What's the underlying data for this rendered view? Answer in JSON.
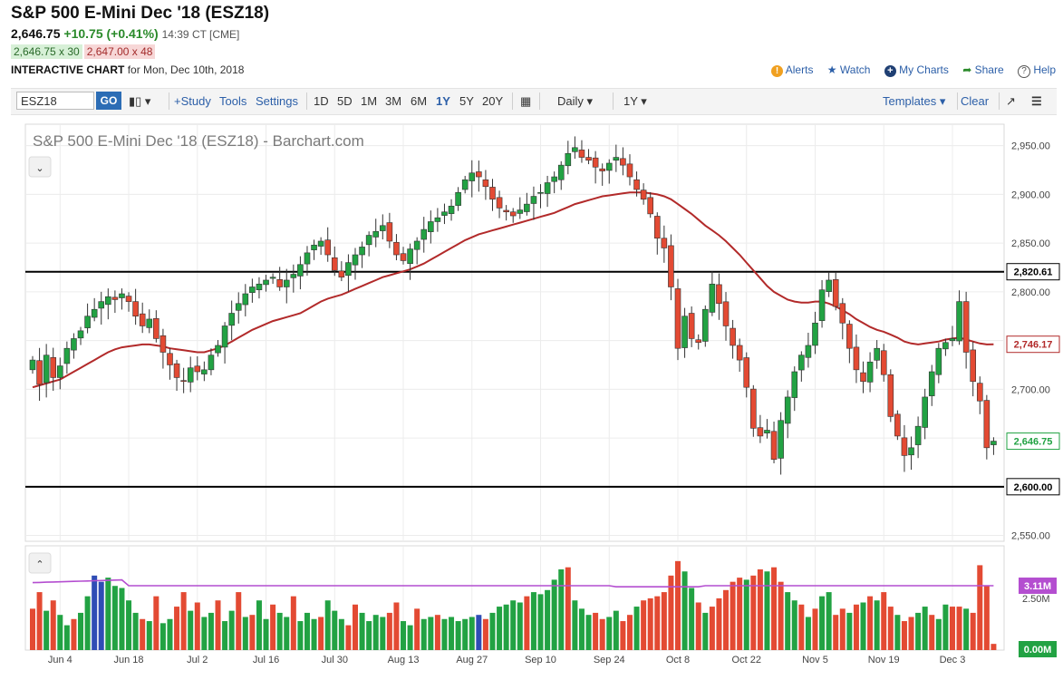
{
  "header": {
    "title": "S&P 500 E-Mini Dec '18 (ESZ18)",
    "last": "2,646.75",
    "change": "+10.75 (+0.41%)",
    "time": "14:39 CT [CME]",
    "bid": "2,646.75 x 30",
    "ask": "2,647.00 x 48",
    "chart_label": "INTERACTIVE CHART",
    "chart_for": "for Mon, Dec 10th, 2018"
  },
  "links": {
    "alerts": "Alerts",
    "watch": "Watch",
    "my_charts": "My Charts",
    "share": "Share",
    "help": "Help"
  },
  "toolbar": {
    "symbol": "ESZ18",
    "go": "GO",
    "study": "+Study",
    "tools": "Tools",
    "settings": "Settings",
    "periods": [
      "1D",
      "5D",
      "1M",
      "3M",
      "6M",
      "1Y",
      "5Y",
      "20Y"
    ],
    "active_period": "1Y",
    "interval": "Daily",
    "range": "1Y",
    "templates": "Templates",
    "clear": "Clear"
  },
  "colors": {
    "up": "#22a243",
    "down": "#e34a33",
    "ma": "#b22a2a",
    "volavg": "#b44ed0",
    "level": "#000000",
    "link": "#2c5fa8"
  },
  "chart_data": {
    "type": "candlestick",
    "title": "S&P 500 E-Mini Dec '18 (ESZ18) - Barchart.com",
    "y_ticks": [
      "2,550.00",
      "2,600.00",
      "2,650.00",
      "2,700.00",
      "2,750.00",
      "2,800.00",
      "2,850.00",
      "2,900.00",
      "2,950.00"
    ],
    "y_tick_values": [
      2550,
      2600,
      2650,
      2700,
      2750,
      2800,
      2850,
      2900,
      2950
    ],
    "ylim": [
      2544,
      2972
    ],
    "x_labels": [
      "Jun 4",
      "Jun 18",
      "Jul 2",
      "Jul 16",
      "Jul 30",
      "Aug 13",
      "Aug 27",
      "Sep 10",
      "Sep 24",
      "Oct 8",
      "Oct 22",
      "Nov 5",
      "Nov 19",
      "Dec 3"
    ],
    "x_label_index": [
      4,
      14,
      24,
      34,
      44,
      54,
      64,
      74,
      84,
      94,
      104,
      114,
      124,
      134
    ],
    "x_count": 142,
    "levels": [
      {
        "value": 2820.61,
        "label": "2,820.61"
      },
      {
        "value": 2600.0,
        "label": "2,600.00"
      }
    ],
    "ma_label": "2,746.17",
    "ma_value": 2746.17,
    "last_label": "2,646.75",
    "last_value": 2646.75,
    "closes": [
      2730,
      2705,
      2735,
      2712,
      2724,
      2742,
      2752,
      2760,
      2775,
      2782,
      2790,
      2795,
      2792,
      2798,
      2790,
      2775,
      2765,
      2772,
      2752,
      2738,
      2725,
      2712,
      2708,
      2722,
      2718,
      2720,
      2735,
      2745,
      2765,
      2778,
      2788,
      2798,
      2805,
      2808,
      2812,
      2815,
      2805,
      2812,
      2818,
      2828,
      2840,
      2848,
      2852,
      2838,
      2822,
      2815,
      2830,
      2838,
      2846,
      2858,
      2862,
      2868,
      2852,
      2838,
      2832,
      2844,
      2852,
      2864,
      2872,
      2876,
      2882,
      2888,
      2902,
      2915,
      2922,
      2918,
      2908,
      2895,
      2886,
      2882,
      2878,
      2884,
      2890,
      2898,
      2902,
      2912,
      2918,
      2930,
      2942,
      2948,
      2938,
      2935,
      2928,
      2924,
      2932,
      2938,
      2930,
      2918,
      2905,
      2895,
      2880,
      2855,
      2845,
      2805,
      2742,
      2775,
      2752,
      2748,
      2782,
      2808,
      2788,
      2765,
      2745,
      2730,
      2702,
      2660,
      2652,
      2658,
      2628,
      2668,
      2692,
      2718,
      2735,
      2745,
      2768,
      2802,
      2812,
      2785,
      2768,
      2742,
      2720,
      2708,
      2728,
      2742,
      2715,
      2672,
      2652,
      2632,
      2640,
      2662,
      2692,
      2718,
      2742,
      2748,
      2752,
      2790,
      2738,
      2708,
      2688,
      2640,
      2646.75
    ],
    "ma": [
      2702,
      2704,
      2706,
      2708,
      2710,
      2714,
      2718,
      2722,
      2726,
      2730,
      2734,
      2738,
      2741,
      2743,
      2744,
      2745,
      2746,
      2746,
      2745,
      2744,
      2742,
      2741,
      2740,
      2739,
      2738,
      2738,
      2740,
      2742,
      2745,
      2749,
      2753,
      2757,
      2761,
      2764,
      2767,
      2770,
      2772,
      2774,
      2776,
      2778,
      2782,
      2786,
      2790,
      2793,
      2795,
      2797,
      2800,
      2803,
      2806,
      2809,
      2812,
      2815,
      2817,
      2819,
      2821,
      2823,
      2826,
      2829,
      2833,
      2837,
      2841,
      2845,
      2849,
      2853,
      2856,
      2859,
      2861,
      2863,
      2865,
      2867,
      2869,
      2871,
      2873,
      2875,
      2877,
      2879,
      2881,
      2884,
      2887,
      2890,
      2892,
      2894,
      2896,
      2898,
      2899,
      2900,
      2901,
      2902,
      2902,
      2902,
      2901,
      2900,
      2898,
      2895,
      2890,
      2885,
      2880,
      2874,
      2868,
      2863,
      2858,
      2852,
      2845,
      2838,
      2830,
      2822,
      2814,
      2806,
      2800,
      2796,
      2792,
      2790,
      2789,
      2789,
      2790,
      2790,
      2788,
      2785,
      2781,
      2777,
      2772,
      2768,
      2764,
      2761,
      2759,
      2756,
      2753,
      2749,
      2747,
      2746,
      2747,
      2748,
      2749,
      2751,
      2752,
      2753,
      2751,
      2749,
      2747,
      2746,
      2746.17
    ],
    "volume_ticks": [
      "2.50M"
    ],
    "vol_avg_label": "3.11M",
    "vol_zero_label": "0.00M",
    "vol_ylim": [
      0,
      4.6
    ],
    "vol_avg": 3.11,
    "volumes": [
      2.0,
      2.8,
      1.9,
      2.4,
      1.7,
      1.2,
      1.5,
      1.8,
      2.6,
      3.6,
      3.3,
      3.5,
      3.1,
      3.0,
      2.4,
      1.8,
      1.5,
      1.4,
      2.6,
      1.3,
      1.5,
      2.1,
      2.8,
      1.9,
      2.3,
      1.6,
      1.8,
      2.4,
      1.4,
      1.9,
      2.8,
      1.6,
      1.7,
      2.4,
      1.5,
      2.2,
      1.8,
      1.6,
      2.6,
      1.4,
      1.8,
      1.5,
      1.6,
      2.4,
      1.9,
      1.5,
      1.2,
      2.2,
      1.8,
      1.4,
      1.7,
      1.6,
      1.8,
      2.3,
      1.4,
      1.2,
      2.0,
      1.5,
      1.6,
      1.7,
      1.5,
      1.6,
      1.4,
      1.5,
      1.6,
      1.7,
      1.5,
      1.8,
      2.1,
      2.2,
      2.4,
      2.3,
      2.6,
      2.8,
      2.7,
      2.9,
      3.4,
      3.9,
      4.0,
      2.4,
      2.0,
      1.7,
      1.8,
      1.5,
      1.6,
      1.9,
      1.4,
      1.7,
      2.1,
      2.4,
      2.5,
      2.6,
      2.8,
      3.6,
      4.3,
      3.8,
      3.0,
      2.3,
      1.8,
      2.1,
      2.5,
      2.9,
      3.3,
      3.5,
      3.4,
      3.6,
      3.9,
      3.8,
      4.0,
      3.3,
      2.8,
      2.4,
      2.2,
      1.6,
      2.0,
      2.6,
      2.8,
      1.7,
      2.0,
      1.8,
      2.2,
      2.3,
      2.6,
      2.4,
      2.8,
      2.1,
      1.7,
      1.4,
      1.6,
      1.8,
      2.1,
      1.7,
      1.5,
      2.2,
      2.1,
      2.1,
      2.0,
      1.8,
      4.1,
      3.1,
      0.3
    ],
    "vol_colors": [
      "d",
      "d",
      "g",
      "d",
      "g",
      "g",
      "d",
      "g",
      "g",
      "b",
      "b",
      "g",
      "g",
      "g",
      "g",
      "g",
      "d",
      "g",
      "d",
      "g",
      "g",
      "d",
      "d",
      "g",
      "d",
      "g",
      "g",
      "d",
      "g",
      "g",
      "d",
      "g",
      "d",
      "g",
      "g",
      "d",
      "g",
      "g",
      "d",
      "g",
      "g",
      "g",
      "d",
      "g",
      "g",
      "g",
      "d",
      "d",
      "g",
      "g",
      "g",
      "g",
      "d",
      "d",
      "g",
      "g",
      "d",
      "g",
      "g",
      "d",
      "g",
      "g",
      "g",
      "g",
      "g",
      "b",
      "d",
      "g",
      "g",
      "g",
      "g",
      "g",
      "d",
      "g",
      "g",
      "g",
      "g",
      "g",
      "d",
      "g",
      "g",
      "g",
      "d",
      "d",
      "g",
      "g",
      "d",
      "d",
      "g",
      "d",
      "d",
      "d",
      "d",
      "d",
      "d",
      "g",
      "g",
      "d",
      "g",
      "d",
      "d",
      "d",
      "d",
      "d",
      "g",
      "d",
      "d",
      "g",
      "d",
      "d",
      "g",
      "g",
      "d",
      "g",
      "d",
      "g",
      "g",
      "d",
      "d",
      "g",
      "d",
      "g",
      "d",
      "g",
      "d",
      "d",
      "g",
      "d",
      "d",
      "g",
      "g",
      "d",
      "g",
      "g",
      "d",
      "d",
      "g",
      "d",
      "d",
      "d",
      "d"
    ]
  }
}
